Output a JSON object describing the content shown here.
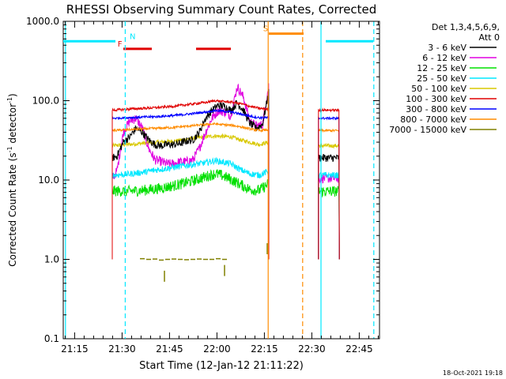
{
  "chart_data": {
    "type": "line",
    "title": "RHESSI Observing Summary Count Rates, Corrected",
    "xlabel": "Start Time (12-Jan-12 21:11:22)",
    "ylabel_main": "Corrected Count Rate (s",
    "ylabel_sup1": "-1",
    "ylabel_mid": " detector",
    "ylabel_sup2": "-1",
    "ylabel_end": ")",
    "yscale": "log",
    "ylim": [
      0.1,
      1000
    ],
    "xlim_minutes": [
      0,
      100
    ],
    "y_ticks": [
      {
        "value": 0.1,
        "label": "0.1"
      },
      {
        "value": 1,
        "label": "1.0"
      },
      {
        "value": 10,
        "label": "10.0"
      },
      {
        "value": 100,
        "label": "100.0"
      },
      {
        "value": 1000,
        "label": "1000.0"
      }
    ],
    "x_ticks": [
      {
        "minute": 3.6,
        "label": "21:15"
      },
      {
        "minute": 18.6,
        "label": "21:30"
      },
      {
        "minute": 33.6,
        "label": "21:45"
      },
      {
        "minute": 48.6,
        "label": "22:00"
      },
      {
        "minute": 63.6,
        "label": "22:15"
      },
      {
        "minute": 78.6,
        "label": "22:30"
      },
      {
        "minute": 93.6,
        "label": "22:45"
      }
    ],
    "legend": {
      "position": "top-right",
      "header1": "Det 1,3,4,5,6,9,",
      "header2": "Att 0",
      "entries": [
        {
          "label": "3 - 6 keV",
          "color": "#000000"
        },
        {
          "label": "6 - 12 keV",
          "color": "#e000e0"
        },
        {
          "label": "12 - 25 keV",
          "color": "#00e000"
        },
        {
          "label": "25 - 50 keV",
          "color": "#00e8ff"
        },
        {
          "label": "50 - 100 keV",
          "color": "#d8c800"
        },
        {
          "label": "100 - 300 keV",
          "color": "#e00000"
        },
        {
          "label": "300 - 800 keV",
          "color": "#0000ff"
        },
        {
          "label": "800 - 7000 keV",
          "color": "#ff8c00"
        },
        {
          "label": "7000 - 15000 keV",
          "color": "#808000"
        }
      ]
    },
    "data_segments": [
      [
        15.5,
        65
      ],
      [
        80.7,
        87.3
      ]
    ],
    "series": [
      {
        "name": "3 - 6 keV",
        "color": "#000000",
        "noise": 0.05,
        "points": [
          [
            15.5,
            19
          ],
          [
            17,
            20
          ],
          [
            19,
            30
          ],
          [
            21,
            35
          ],
          [
            23,
            45
          ],
          [
            25,
            40
          ],
          [
            27,
            32
          ],
          [
            29,
            28
          ],
          [
            31,
            27
          ],
          [
            33,
            28
          ],
          [
            35,
            28
          ],
          [
            37,
            29
          ],
          [
            39,
            31
          ],
          [
            41,
            32
          ],
          [
            43,
            40
          ],
          [
            45,
            60
          ],
          [
            47,
            75
          ],
          [
            49,
            88
          ],
          [
            51,
            85
          ],
          [
            53,
            75
          ],
          [
            55,
            95
          ],
          [
            57,
            75
          ],
          [
            59,
            52
          ],
          [
            61,
            45
          ],
          [
            63,
            50
          ],
          [
            65,
            130
          ],
          [
            80.7,
            19
          ],
          [
            87.3,
            19
          ]
        ]
      },
      {
        "name": "6 - 12 keV",
        "color": "#e000e0",
        "noise": 0.06,
        "points": [
          [
            15.5,
            10.5
          ],
          [
            17,
            13
          ],
          [
            19,
            40
          ],
          [
            21,
            55
          ],
          [
            23,
            60
          ],
          [
            25,
            45
          ],
          [
            27,
            25
          ],
          [
            29,
            18
          ],
          [
            31,
            17
          ],
          [
            33,
            16
          ],
          [
            35,
            16
          ],
          [
            37,
            17
          ],
          [
            39,
            17
          ],
          [
            41,
            18
          ],
          [
            43,
            25
          ],
          [
            45,
            40
          ],
          [
            47,
            60
          ],
          [
            49,
            75
          ],
          [
            51,
            72
          ],
          [
            53,
            65
          ],
          [
            55,
            150
          ],
          [
            57,
            110
          ],
          [
            59,
            55
          ],
          [
            61,
            48
          ],
          [
            63,
            50
          ],
          [
            65,
            160
          ],
          [
            80.7,
            10.5
          ],
          [
            87.3,
            10.5
          ]
        ]
      },
      {
        "name": "12 - 25 keV",
        "color": "#00e000",
        "noise": 0.07,
        "points": [
          [
            15.5,
            7.3
          ],
          [
            20,
            7.2
          ],
          [
            25,
            7.4
          ],
          [
            30,
            7.8
          ],
          [
            35,
            8.5
          ],
          [
            40,
            9.5
          ],
          [
            45,
            11
          ],
          [
            48,
            12
          ],
          [
            50,
            11.5
          ],
          [
            53,
            10.2
          ],
          [
            56,
            8.8
          ],
          [
            59,
            7.6
          ],
          [
            62,
            7.4
          ],
          [
            65,
            9
          ],
          [
            80.7,
            7.2
          ],
          [
            87.3,
            7.2
          ]
        ]
      },
      {
        "name": "25 - 50 keV",
        "color": "#00e8ff",
        "noise": 0.04,
        "points": [
          [
            15.5,
            11.5
          ],
          [
            20,
            11.8
          ],
          [
            25,
            12.5
          ],
          [
            30,
            13.5
          ],
          [
            35,
            14.5
          ],
          [
            40,
            15.5
          ],
          [
            45,
            16.5
          ],
          [
            48,
            17.5
          ],
          [
            50,
            17
          ],
          [
            53,
            16
          ],
          [
            56,
            13.5
          ],
          [
            59,
            12
          ],
          [
            62,
            11.5
          ],
          [
            65,
            13
          ],
          [
            80.7,
            11.5
          ],
          [
            87.3,
            11.5
          ]
        ]
      },
      {
        "name": "50 - 100 keV",
        "color": "#d8c800",
        "noise": 0.025,
        "points": [
          [
            15.5,
            27
          ],
          [
            20,
            28
          ],
          [
            25,
            29
          ],
          [
            30,
            30
          ],
          [
            35,
            31
          ],
          [
            40,
            33
          ],
          [
            45,
            35
          ],
          [
            48,
            36
          ],
          [
            50,
            35.5
          ],
          [
            53,
            35
          ],
          [
            56,
            32
          ],
          [
            59,
            30
          ],
          [
            62,
            28
          ],
          [
            65,
            30
          ],
          [
            80.7,
            27
          ],
          [
            87.3,
            27
          ]
        ]
      },
      {
        "name": "100 - 300 keV",
        "color": "#e00000",
        "noise": 0.015,
        "points": [
          [
            15.5,
            76
          ],
          [
            20,
            78
          ],
          [
            25,
            80
          ],
          [
            30,
            82
          ],
          [
            35,
            85
          ],
          [
            40,
            90
          ],
          [
            45,
            95
          ],
          [
            48,
            100
          ],
          [
            50,
            98
          ],
          [
            53,
            96
          ],
          [
            56,
            92
          ],
          [
            59,
            85
          ],
          [
            62,
            80
          ],
          [
            65,
            78
          ],
          [
            80.7,
            76
          ],
          [
            87.3,
            76
          ]
        ]
      },
      {
        "name": "300 - 800 keV",
        "color": "#0000ff",
        "noise": 0.015,
        "points": [
          [
            15.5,
            60
          ],
          [
            20,
            61
          ],
          [
            25,
            62
          ],
          [
            30,
            63
          ],
          [
            35,
            65
          ],
          [
            40,
            68
          ],
          [
            45,
            72
          ],
          [
            48,
            75
          ],
          [
            50,
            74
          ],
          [
            53,
            72
          ],
          [
            56,
            68
          ],
          [
            59,
            64
          ],
          [
            62,
            61
          ],
          [
            65,
            61
          ],
          [
            80.7,
            60
          ],
          [
            87.3,
            60
          ]
        ]
      },
      {
        "name": "800 - 7000 keV",
        "color": "#ff8c00",
        "noise": 0.015,
        "points": [
          [
            15.5,
            42
          ],
          [
            20,
            43
          ],
          [
            25,
            44
          ],
          [
            30,
            45
          ],
          [
            35,
            46
          ],
          [
            40,
            48
          ],
          [
            45,
            50
          ],
          [
            48,
            51
          ],
          [
            50,
            50
          ],
          [
            53,
            49
          ],
          [
            56,
            47
          ],
          [
            59,
            44
          ],
          [
            62,
            42
          ],
          [
            65,
            43
          ],
          [
            80.7,
            42
          ],
          [
            87.3,
            42
          ]
        ]
      }
    ],
    "sparse_series": {
      "name": "7000 - 15000 keV",
      "color": "#808000",
      "points": [
        [
          25,
          1.02
        ],
        [
          27,
          1.0
        ],
        [
          29,
          1.01
        ],
        [
          31,
          0.98
        ],
        [
          33,
          1.0
        ],
        [
          35,
          1.01
        ],
        [
          37,
          1.0
        ],
        [
          39,
          0.99
        ],
        [
          41,
          1.0
        ],
        [
          43,
          1.01
        ],
        [
          45,
          1.0
        ],
        [
          47,
          1.0
        ],
        [
          49,
          1.02
        ],
        [
          51,
          1.0
        ]
      ],
      "drops": [
        [
          32,
          0.72
        ],
        [
          51,
          0.85
        ],
        [
          64.5,
          1.6
        ]
      ]
    },
    "flags": [
      {
        "letter": "N",
        "kind": "bar",
        "color": "#00e8ff",
        "y": 560,
        "label_minute": 21.0,
        "segments": [
          [
            0,
            16.5
          ],
          [
            83,
            98
          ]
        ]
      },
      {
        "letter": "F",
        "kind": "bar",
        "color": "#e00000",
        "y": 450,
        "label_minute": 17.2,
        "segments": [
          [
            19,
            28
          ],
          [
            42,
            53
          ]
        ]
      },
      {
        "letter": "S",
        "kind": "bar",
        "color": "#ff8c00",
        "y": 700,
        "label_minute": 63.2,
        "segments": [
          [
            65,
            76
          ]
        ]
      }
    ],
    "vlines": [
      {
        "minute": 0.7,
        "color": "#00e8ff",
        "style": "solid"
      },
      {
        "minute": 81.5,
        "color": "#00e8ff",
        "style": "solid"
      },
      {
        "minute": 19.6,
        "color": "#00e8ff",
        "style": "dashed"
      },
      {
        "minute": 98.2,
        "color": "#00e8ff",
        "style": "dashed"
      },
      {
        "minute": 64.8,
        "color": "#ff8c00",
        "style": "solid"
      },
      {
        "minute": 75.7,
        "color": "#ff8c00",
        "style": "dashed"
      }
    ],
    "timestamp": "18-Oct-2021 19:18"
  }
}
